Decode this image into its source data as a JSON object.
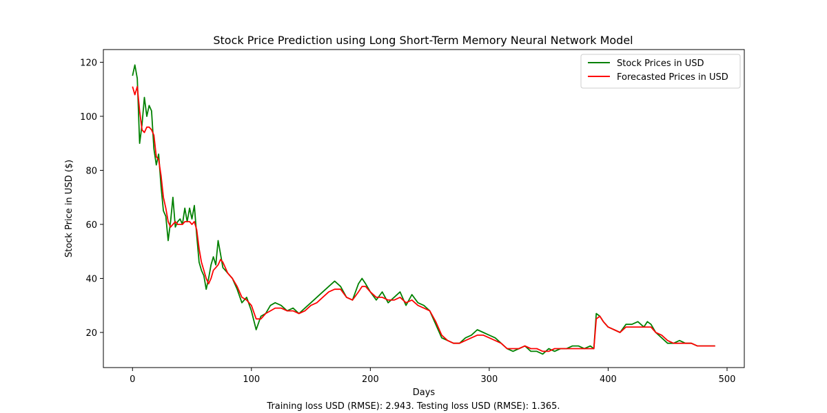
{
  "chart_data": {
    "type": "line",
    "title": "Stock Price Prediction using Long Short-Term Memory Neural Network Model",
    "xlabel": "Days",
    "ylabel": "Stock Price in USD ($)",
    "caption": "Training loss USD (RMSE): 2.943. Testing loss USD (RMSE): 1.365.",
    "xlim": [
      -24.5,
      514.5
    ],
    "ylim": [
      7.0,
      124.7
    ],
    "xticks": [
      0,
      100,
      200,
      300,
      400,
      500
    ],
    "yticks": [
      20,
      40,
      60,
      80,
      100,
      120
    ],
    "grid": false,
    "legend_position": "upper right",
    "series": [
      {
        "name": "Stock Prices in USD",
        "color": "#008000",
        "x": [
          0,
          2,
          4,
          6,
          8,
          10,
          12,
          14,
          16,
          18,
          20,
          22,
          24,
          26,
          28,
          30,
          32,
          34,
          36,
          38,
          40,
          42,
          44,
          46,
          48,
          50,
          52,
          54,
          56,
          58,
          60,
          62,
          64,
          66,
          68,
          70,
          72,
          74,
          76,
          78,
          80,
          84,
          88,
          92,
          96,
          100,
          104,
          108,
          112,
          116,
          120,
          125,
          130,
          135,
          140,
          145,
          150,
          155,
          160,
          165,
          170,
          175,
          180,
          185,
          190,
          193,
          196,
          200,
          205,
          210,
          215,
          220,
          225,
          230,
          235,
          240,
          245,
          250,
          255,
          260,
          265,
          270,
          275,
          280,
          285,
          290,
          295,
          300,
          305,
          310,
          315,
          320,
          325,
          330,
          335,
          340,
          345,
          350,
          355,
          360,
          365,
          370,
          375,
          380,
          385,
          388,
          390,
          393,
          396,
          400,
          405,
          410,
          415,
          420,
          425,
          430,
          433,
          436,
          440,
          445,
          450,
          455,
          460,
          465,
          470,
          475,
          480,
          485,
          490
        ],
        "values": [
          115,
          119,
          114,
          90,
          97,
          107,
          100,
          104,
          102,
          88,
          82,
          86,
          74,
          65,
          63,
          54,
          61,
          70,
          59,
          61,
          62,
          60,
          66,
          61,
          66,
          62,
          67,
          56,
          46,
          43,
          41,
          36,
          40,
          45,
          48,
          45,
          54,
          49,
          44,
          43,
          42,
          40,
          36,
          31,
          33,
          28,
          21,
          26,
          27,
          30,
          31,
          30,
          28,
          29,
          27,
          29,
          31,
          33,
          35,
          37,
          39,
          37,
          33,
          32,
          38,
          40,
          38,
          35,
          32,
          35,
          31,
          33,
          35,
          30,
          34,
          31,
          30,
          28,
          23,
          18,
          17,
          16,
          16,
          18,
          19,
          21,
          20,
          19,
          18,
          16,
          14,
          13,
          14,
          15,
          13,
          13,
          12,
          14,
          13,
          14,
          14,
          15,
          15,
          14,
          15,
          14,
          27,
          26,
          24,
          22,
          21,
          20,
          23,
          23,
          24,
          22,
          24,
          23,
          20,
          18,
          16,
          16,
          17,
          16,
          16,
          15,
          15,
          15,
          15
        ]
      },
      {
        "name": "Forecasted Prices in USD",
        "color": "#ff0000",
        "x": [
          0,
          2,
          4,
          6,
          8,
          10,
          12,
          14,
          16,
          18,
          20,
          22,
          24,
          26,
          28,
          30,
          32,
          34,
          36,
          38,
          40,
          42,
          44,
          46,
          48,
          50,
          52,
          54,
          56,
          58,
          60,
          62,
          64,
          66,
          68,
          70,
          72,
          74,
          76,
          78,
          80,
          84,
          88,
          92,
          96,
          100,
          104,
          108,
          112,
          116,
          120,
          125,
          130,
          135,
          140,
          145,
          150,
          155,
          160,
          165,
          170,
          175,
          180,
          185,
          190,
          193,
          196,
          200,
          205,
          210,
          215,
          220,
          225,
          230,
          235,
          240,
          245,
          250,
          255,
          260,
          265,
          270,
          275,
          280,
          285,
          290,
          295,
          300,
          305,
          310,
          315,
          320,
          325,
          330,
          335,
          340,
          345,
          350,
          355,
          360,
          365,
          370,
          375,
          380,
          385,
          388,
          390,
          393,
          396,
          400,
          405,
          410,
          415,
          420,
          425,
          430,
          433,
          436,
          440,
          445,
          450,
          455,
          460,
          465,
          470,
          475,
          480,
          485,
          490
        ],
        "values": [
          111,
          108,
          111,
          102,
          95,
          94,
          96,
          96,
          95,
          93,
          85,
          84,
          78,
          70,
          66,
          61,
          59,
          60,
          61,
          60,
          60,
          60,
          61,
          61,
          61,
          60,
          61,
          58,
          51,
          46,
          43,
          40,
          38,
          40,
          43,
          44,
          45,
          47,
          46,
          44,
          42,
          40,
          37,
          33,
          32,
          30,
          25,
          25,
          27,
          28,
          29,
          29,
          28,
          28,
          27,
          28,
          30,
          31,
          33,
          35,
          36,
          36,
          33,
          32,
          35,
          37,
          37,
          35,
          33,
          33,
          32,
          32,
          33,
          31,
          32,
          30,
          29,
          28,
          24,
          19,
          17,
          16,
          16,
          17,
          18,
          19,
          19,
          18,
          17,
          16,
          14,
          14,
          14,
          15,
          14,
          14,
          13,
          13,
          14,
          14,
          14,
          14,
          14,
          14,
          14,
          14,
          25,
          26,
          24,
          22,
          21,
          20,
          22,
          22,
          22,
          22,
          22,
          22,
          20,
          19,
          17,
          16,
          16,
          16,
          16,
          15,
          15,
          15,
          15
        ]
      }
    ]
  }
}
